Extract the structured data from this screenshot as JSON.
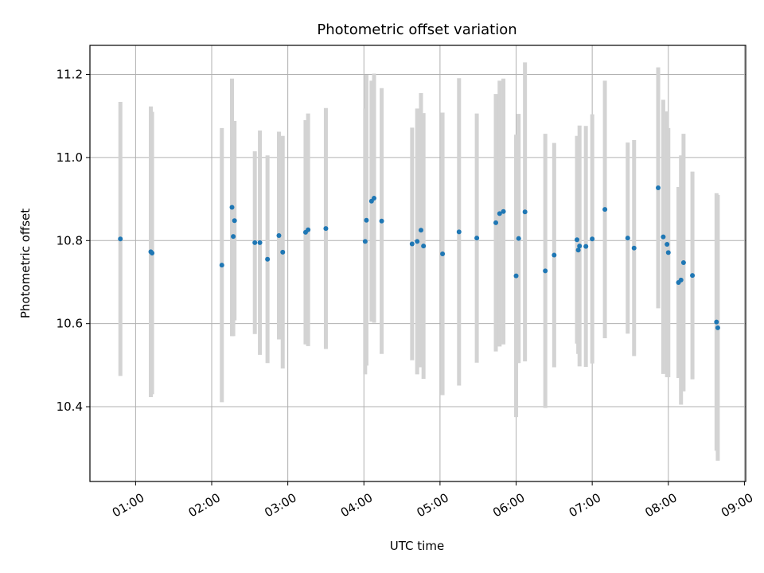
{
  "chart_data": {
    "type": "scatter",
    "title": "Photometric offset variation",
    "xlabel": "UTC time",
    "ylabel": "Photometric offset",
    "x_ticks": [
      "01:00",
      "02:00",
      "03:00",
      "04:00",
      "05:00",
      "06:00",
      "07:00",
      "08:00",
      "09:00"
    ],
    "y_ticks": [
      "10.4",
      "10.6",
      "10.8",
      "11.0",
      "11.2"
    ],
    "xlim": [
      "00:24",
      "09:01"
    ],
    "ylim": [
      10.22,
      11.27
    ],
    "grid": true,
    "colors": {
      "point": "#1f77b4",
      "errorbar": "#d3d3d3",
      "grid": "#b0b0b0"
    },
    "series": [
      {
        "x": [
          "00:48",
          "01:12",
          "01:13",
          "02:08",
          "02:16",
          "02:17",
          "02:18",
          "02:34",
          "02:38",
          "02:44",
          "02:53",
          "02:56",
          "03:14",
          "03:16",
          "03:30",
          "04:01",
          "04:02",
          "04:06",
          "04:08",
          "04:14",
          "04:38",
          "04:42",
          "04:45",
          "04:47",
          "05:02",
          "05:15",
          "05:29",
          "05:44",
          "05:47",
          "05:50",
          "06:00",
          "06:02",
          "06:07",
          "06:23",
          "06:30",
          "06:48",
          "06:49",
          "06:50",
          "06:55",
          "07:00",
          "07:10",
          "07:28",
          "07:33",
          "07:52",
          "07:56",
          "07:59",
          "08:00",
          "08:08",
          "08:10",
          "08:12",
          "08:19",
          "08:38",
          "08:39"
        ],
        "y": [
          10.804,
          10.773,
          10.77,
          10.741,
          10.88,
          10.81,
          10.848,
          10.795,
          10.795,
          10.755,
          10.812,
          10.772,
          10.82,
          10.826,
          10.829,
          10.798,
          10.849,
          10.895,
          10.902,
          10.847,
          10.792,
          10.798,
          10.825,
          10.787,
          10.768,
          10.821,
          10.806,
          10.843,
          10.865,
          10.87,
          10.715,
          10.805,
          10.869,
          10.727,
          10.765,
          10.802,
          10.777,
          10.787,
          10.786,
          10.804,
          10.875,
          10.806,
          10.782,
          10.927,
          10.809,
          10.791,
          10.771,
          10.699,
          10.705,
          10.747,
          10.716,
          10.604,
          10.59
        ],
        "err": [
          0.33,
          0.35,
          0.34,
          0.33,
          0.31,
          0.24,
          0.24,
          0.22,
          0.27,
          0.25,
          0.25,
          0.28,
          0.27,
          0.28,
          0.29,
          0.32,
          0.35,
          0.29,
          0.3,
          0.32,
          0.28,
          0.32,
          0.33,
          0.32,
          0.34,
          0.37,
          0.3,
          0.31,
          0.32,
          0.32,
          0.34,
          0.3,
          0.36,
          0.33,
          0.27,
          0.25,
          0.25,
          0.29,
          0.29,
          0.3,
          0.31,
          0.23,
          0.26,
          0.29,
          0.33,
          0.32,
          0.3,
          0.23,
          0.3,
          0.31,
          0.25,
          0.31,
          0.32
        ]
      }
    ]
  }
}
